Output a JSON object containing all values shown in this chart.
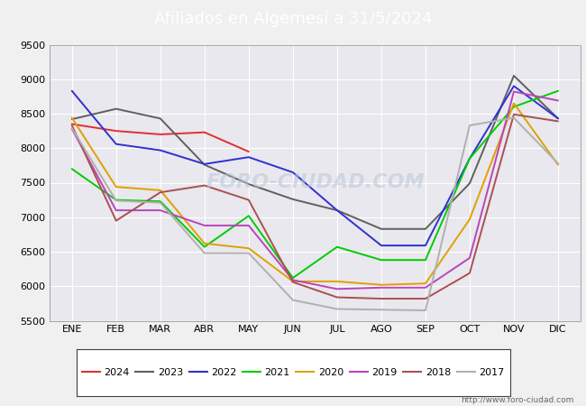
{
  "title": "Afiliados en Algemesí a 31/5/2024",
  "title_bg_color": "#5080c0",
  "title_text_color": "white",
  "ylim": [
    5500,
    9500
  ],
  "months": [
    "ENE",
    "FEB",
    "MAR",
    "ABR",
    "MAY",
    "JUN",
    "JUL",
    "AGO",
    "SEP",
    "OCT",
    "NOV",
    "DIC"
  ],
  "watermark": "FORO-CIUDAD.COM",
  "url": "http://www.foro-ciudad.com",
  "series": {
    "2024": {
      "color": "#e03030",
      "data": [
        8350,
        8250,
        8200,
        8230,
        7950,
        null,
        null,
        null,
        null,
        null,
        null,
        null
      ]
    },
    "2023": {
      "color": "#606060",
      "data": [
        8420,
        8570,
        8430,
        7760,
        7480,
        7260,
        7100,
        6830,
        6830,
        7490,
        9050,
        8430
      ]
    },
    "2022": {
      "color": "#3030d0",
      "data": [
        8830,
        8060,
        7970,
        7770,
        7870,
        7650,
        7100,
        6590,
        6590,
        7850,
        8900,
        8430
      ]
    },
    "2021": {
      "color": "#00cc00",
      "data": [
        7700,
        7250,
        7230,
        6570,
        7020,
        6120,
        6570,
        6380,
        6380,
        7850,
        8600,
        8830
      ]
    },
    "2020": {
      "color": "#e0a000",
      "data": [
        8440,
        7440,
        7390,
        6620,
        6550,
        6070,
        6070,
        6020,
        6040,
        6970,
        8650,
        7760
      ]
    },
    "2019": {
      "color": "#bb44bb",
      "data": [
        8280,
        7100,
        7100,
        6880,
        6880,
        6090,
        5960,
        5980,
        5980,
        6410,
        8820,
        8690
      ]
    },
    "2018": {
      "color": "#aa5050",
      "data": [
        8330,
        6950,
        7360,
        7460,
        7250,
        6060,
        5840,
        5820,
        5820,
        6190,
        8490,
        8390
      ]
    },
    "2017": {
      "color": "#b0b0b0",
      "data": [
        8290,
        7240,
        7210,
        6480,
        6480,
        5800,
        5670,
        5660,
        5650,
        8330,
        8440,
        7780
      ]
    }
  },
  "legend_order": [
    "2024",
    "2023",
    "2022",
    "2021",
    "2020",
    "2019",
    "2018",
    "2017"
  ],
  "figure_bg_color": "#f0f0f0",
  "plot_bg_color": "#e8e8ee",
  "grid_color": "#ffffff",
  "tick_fontsize": 8,
  "title_fontsize": 13
}
